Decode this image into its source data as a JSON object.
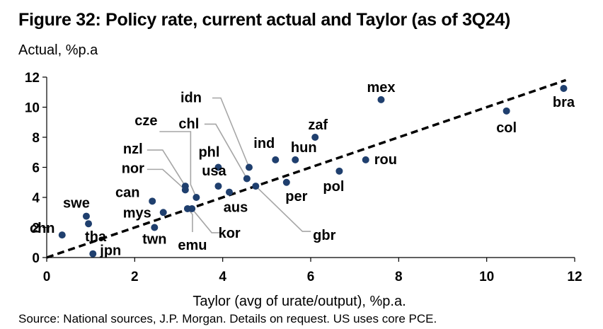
{
  "title": "Figure 32: Policy rate, current actual and Taylor (as of 3Q24)",
  "source": "Source: National sources, J.P. Morgan. Details on request. US uses core PCE.",
  "chart_data": {
    "type": "scatter",
    "title": "Figure 32: Policy rate, current actual and Taylor (as of 3Q24)",
    "xlabel": "Taylor (avg of urate/output), %p.a.",
    "ylabel": "Actual, %p.a",
    "xlim": [
      0,
      12
    ],
    "ylim": [
      0,
      12
    ],
    "xticks": [
      0,
      2,
      4,
      6,
      8,
      10,
      12
    ],
    "yticks": [
      0,
      2,
      4,
      6,
      8,
      10,
      12
    ],
    "grid": false,
    "marker_color": "#1f3f6e",
    "reference_line": {
      "style": "dashed",
      "color": "#000000",
      "from": [
        0,
        0
      ],
      "to": [
        11.8,
        11.8
      ]
    },
    "points": [
      {
        "label": "bra",
        "x": 11.75,
        "y": 11.25
      },
      {
        "label": "mex",
        "x": 7.6,
        "y": 10.5
      },
      {
        "label": "col",
        "x": 10.45,
        "y": 9.75
      },
      {
        "label": "zaf",
        "x": 6.1,
        "y": 8.0
      },
      {
        "label": "rou",
        "x": 7.25,
        "y": 6.5
      },
      {
        "label": "ind",
        "x": 5.2,
        "y": 6.5
      },
      {
        "label": "hun",
        "x": 5.65,
        "y": 6.5
      },
      {
        "label": "pol",
        "x": 6.65,
        "y": 5.75
      },
      {
        "label": "per",
        "x": 5.45,
        "y": 5.0
      },
      {
        "label": "idn",
        "x": 4.6,
        "y": 6.0
      },
      {
        "label": "chl",
        "x": 4.55,
        "y": 5.25
      },
      {
        "label": "gbr",
        "x": 4.75,
        "y": 4.75
      },
      {
        "label": "phl",
        "x": 3.9,
        "y": 6.0
      },
      {
        "label": "usa",
        "x": 3.9,
        "y": 4.75
      },
      {
        "label": "aus",
        "x": 4.15,
        "y": 4.35
      },
      {
        "label": "cze",
        "x": 3.4,
        "y": 4.0
      },
      {
        "label": "nzl",
        "x": 3.15,
        "y": 4.75
      },
      {
        "label": "nor",
        "x": 3.15,
        "y": 4.5
      },
      {
        "label": "can",
        "x": 2.4,
        "y": 3.75
      },
      {
        "label": "mys",
        "x": 2.65,
        "y": 3.0
      },
      {
        "label": "kor",
        "x": 3.3,
        "y": 3.25
      },
      {
        "label": "emu",
        "x": 3.2,
        "y": 3.25
      },
      {
        "label": "twn",
        "x": 2.45,
        "y": 2.0
      },
      {
        "label": "swe",
        "x": 0.9,
        "y": 2.75
      },
      {
        "label": "tha",
        "x": 0.95,
        "y": 2.25
      },
      {
        "label": "chn",
        "x": 0.35,
        "y": 1.5
      },
      {
        "label": "jpn",
        "x": 1.05,
        "y": 0.25
      }
    ]
  }
}
